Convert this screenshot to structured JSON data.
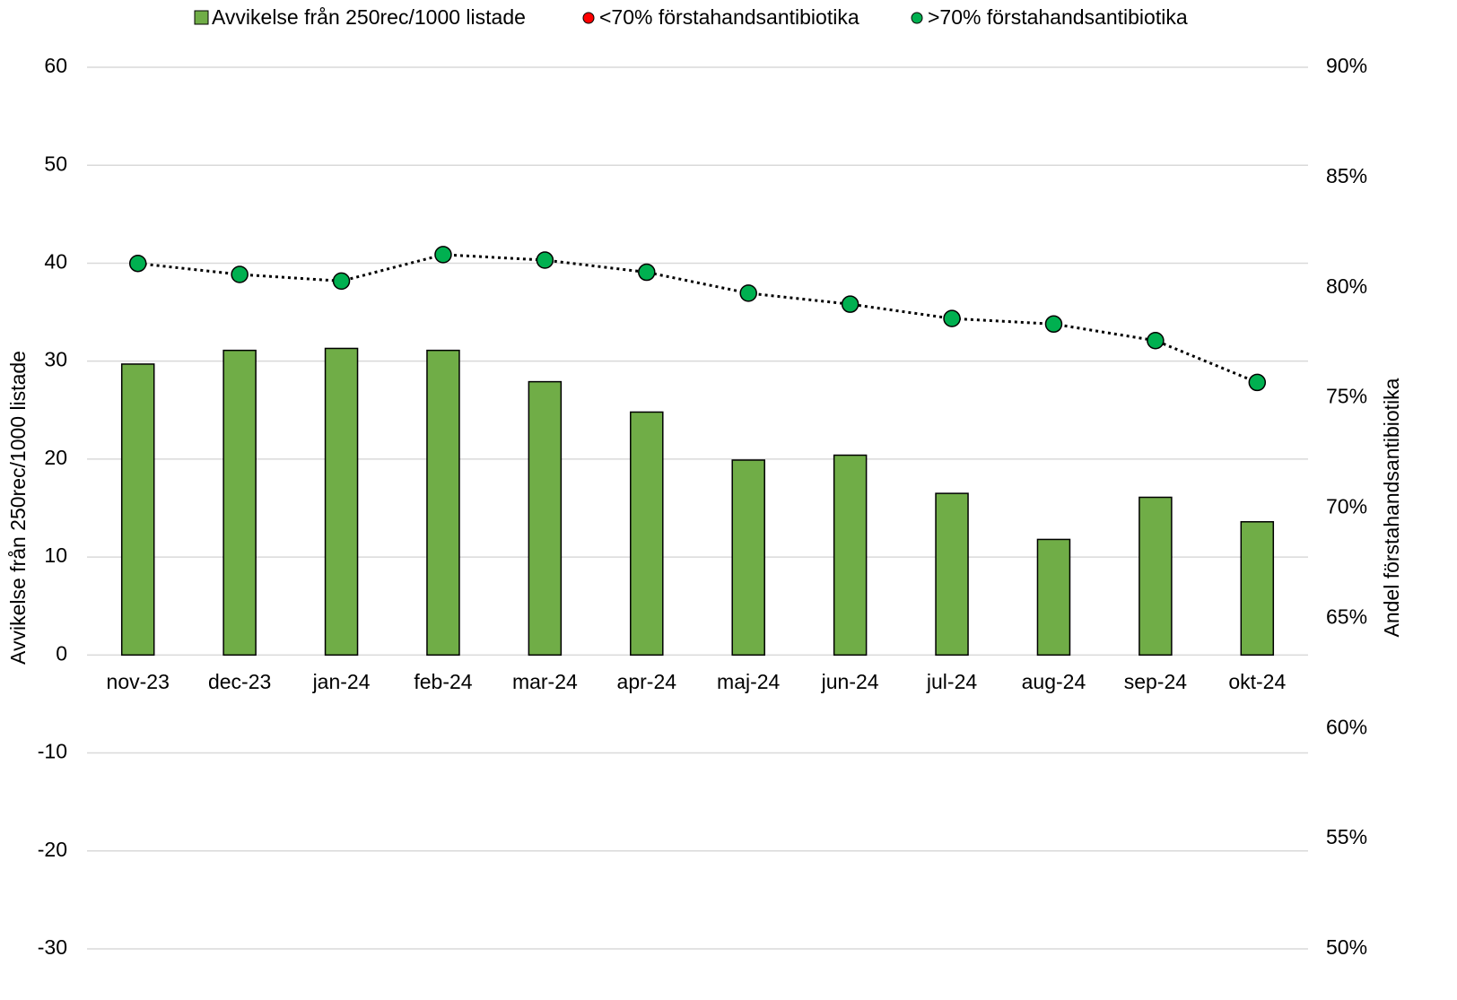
{
  "chart_data": {
    "type": "bar",
    "y_label": "Avvikelse från 250rec/1000 listade",
    "y2_label": "Andel förstahandsantibiotika",
    "categories": [
      "nov-23",
      "dec-23",
      "jan-24",
      "feb-24",
      "mar-24",
      "apr-24",
      "maj-24",
      "jun-24",
      "jul-24",
      "aug-24",
      "sep-24",
      "okt-24"
    ],
    "series": [
      {
        "name": "Avvikelse från 250rec/1000 listade",
        "type": "bar",
        "color": "#70ad47",
        "values": [
          29.7,
          31.1,
          31.3,
          31.1,
          27.9,
          24.8,
          19.9,
          20.4,
          16.5,
          11.8,
          16.1,
          13.6
        ]
      },
      {
        "name": "<70% förstahandsantibiotika",
        "type": "line",
        "axis": "y2",
        "color": "#ff0000",
        "values": [
          null,
          null,
          null,
          null,
          null,
          null,
          null,
          null,
          null,
          null,
          null,
          null
        ]
      },
      {
        "name": ">70% förstahandsantibiotika",
        "type": "line",
        "axis": "y2",
        "color": "#00b050",
        "values": [
          81.1,
          80.6,
          80.3,
          81.5,
          81.25,
          80.7,
          79.75,
          79.25,
          78.6,
          78.35,
          77.6,
          75.7
        ]
      }
    ],
    "ylim": [
      -30,
      60
    ],
    "yticks": [
      -30,
      -20,
      -10,
      0,
      10,
      20,
      30,
      40,
      50,
      60
    ],
    "y2lim": [
      50,
      90
    ],
    "y2ticks": [
      {
        "value": 50,
        "label": "50%"
      },
      {
        "value": 55,
        "label": "55%"
      },
      {
        "value": 60,
        "label": "60%"
      },
      {
        "value": 65,
        "label": "65%"
      },
      {
        "value": 70,
        "label": "70%"
      },
      {
        "value": 75,
        "label": "75%"
      },
      {
        "value": 80,
        "label": "80%"
      },
      {
        "value": 85,
        "label": "85%"
      },
      {
        "value": 90,
        "label": "90%"
      }
    ],
    "grid": true,
    "legend": "top"
  }
}
